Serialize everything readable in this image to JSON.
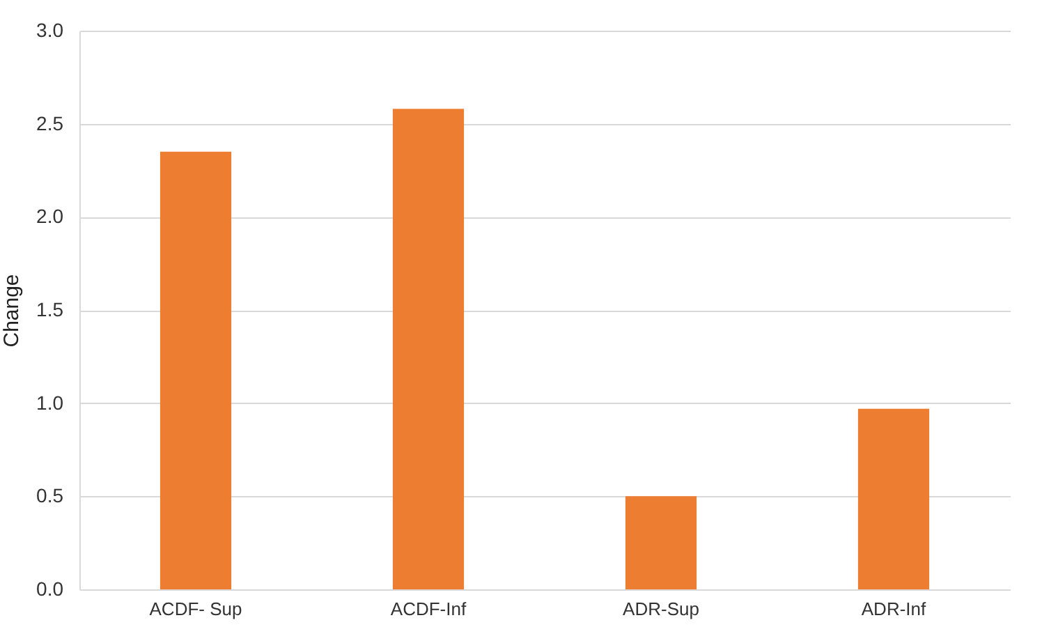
{
  "chart_data": {
    "type": "bar",
    "ylabel": "Change",
    "categories": [
      "ACDF- Sup",
      "ACDF-Inf",
      "ADR-Sup",
      "ADR-Inf"
    ],
    "values": [
      2.35,
      2.58,
      0.5,
      0.97
    ],
    "color": "#ed7d31",
    "ylim": [
      0,
      3
    ],
    "yticks": [
      {
        "value": 0,
        "label": "0.0"
      },
      {
        "value": 0.5,
        "label": "0.5"
      },
      {
        "value": 1,
        "label": "1.0"
      },
      {
        "value": 1.5,
        "label": "1.5"
      },
      {
        "value": 2,
        "label": "2.0"
      },
      {
        "value": 2.5,
        "label": "2.5"
      },
      {
        "value": 3,
        "label": "3.0"
      }
    ],
    "grid": "y"
  }
}
